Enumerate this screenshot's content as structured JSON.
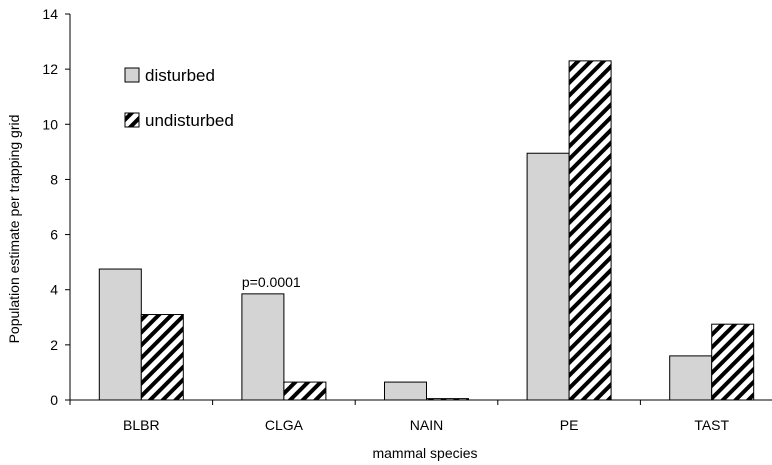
{
  "chart_data": {
    "type": "bar",
    "categories": [
      "BLBR",
      "CLGA",
      "NAIN",
      "PE",
      "TAST"
    ],
    "series": [
      {
        "name": "disturbed",
        "values": [
          4.75,
          3.85,
          0.65,
          8.95,
          1.6
        ],
        "color": "#d4d4d4",
        "pattern": "solid"
      },
      {
        "name": "undisturbed",
        "values": [
          3.1,
          0.65,
          0.05,
          12.3,
          2.75
        ],
        "color": "#000000",
        "pattern": "diagonal-hatch"
      }
    ],
    "title": "",
    "xlabel": "mammal species",
    "ylabel": "Population estimate per trapping grid",
    "ylim": [
      0,
      14
    ],
    "yticks": [
      0,
      2,
      4,
      6,
      8,
      10,
      12,
      14
    ],
    "grid": false,
    "legend_position": "top-left",
    "annotations": [
      {
        "category": "CLGA",
        "text": "p=0.0001"
      }
    ]
  }
}
